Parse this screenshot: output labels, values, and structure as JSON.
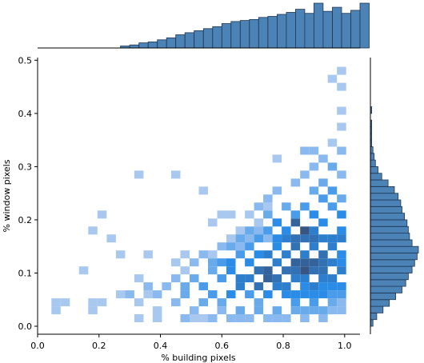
{
  "chart_data": {
    "type": "heatmap",
    "subtype": "joint-histogram-with-marginals",
    "xlabel": "% building pixels",
    "ylabel": "% window pixels",
    "xlim": [
      0.0,
      1.05
    ],
    "ylim": [
      -0.015,
      0.505
    ],
    "x_ticks": [
      "0.0",
      "0.2",
      "0.4",
      "0.6",
      "0.8",
      "1.0"
    ],
    "y_ticks": [
      "0.0",
      "0.1",
      "0.2",
      "0.3",
      "0.4",
      "0.5"
    ],
    "color": "#1f77b4",
    "bar_color": "#4c83b6",
    "grid": false,
    "bin_width_x": 0.03,
    "bin_height_y": 0.015,
    "cells": [
      [
        0.06,
        0.045,
        1
      ],
      [
        0.06,
        0.03,
        1
      ],
      [
        0.09,
        0.045,
        1
      ],
      [
        0.18,
        0.045,
        1
      ],
      [
        0.18,
        0.03,
        1
      ],
      [
        0.21,
        0.045,
        1
      ],
      [
        0.18,
        0.18,
        1
      ],
      [
        0.21,
        0.21,
        1
      ],
      [
        0.15,
        0.105,
        1
      ],
      [
        0.24,
        0.165,
        1
      ],
      [
        0.27,
        0.135,
        1
      ],
      [
        0.36,
        0.135,
        1
      ],
      [
        0.27,
        0.06,
        1
      ],
      [
        0.3,
        0.06,
        2
      ],
      [
        0.33,
        0.045,
        1
      ],
      [
        0.36,
        0.06,
        1
      ],
      [
        0.39,
        0.06,
        2
      ],
      [
        0.42,
        0.075,
        2
      ],
      [
        0.33,
        0.09,
        1
      ],
      [
        0.36,
        0.075,
        2
      ],
      [
        0.33,
        0.015,
        1
      ],
      [
        0.39,
        0.03,
        1
      ],
      [
        0.39,
        0.015,
        1
      ],
      [
        0.33,
        0.285,
        1
      ],
      [
        0.45,
        0.285,
        1
      ],
      [
        0.54,
        0.255,
        1
      ],
      [
        0.57,
        0.195,
        1
      ],
      [
        0.6,
        0.21,
        1
      ],
      [
        0.63,
        0.21,
        1
      ],
      [
        0.66,
        0.18,
        1
      ],
      [
        0.69,
        0.21,
        1
      ],
      [
        0.72,
        0.195,
        1
      ],
      [
        0.75,
        0.225,
        1
      ],
      [
        0.78,
        0.315,
        1
      ],
      [
        0.45,
        0.12,
        1
      ],
      [
        0.48,
        0.105,
        1
      ],
      [
        0.51,
        0.12,
        2
      ],
      [
        0.48,
        0.135,
        1
      ],
      [
        0.54,
        0.135,
        2
      ],
      [
        0.57,
        0.135,
        1
      ],
      [
        0.6,
        0.15,
        2
      ],
      [
        0.63,
        0.165,
        1
      ],
      [
        0.66,
        0.15,
        2
      ],
      [
        0.69,
        0.165,
        2
      ],
      [
        0.72,
        0.18,
        2
      ],
      [
        0.75,
        0.165,
        2
      ],
      [
        0.45,
        0.09,
        2
      ],
      [
        0.48,
        0.075,
        3
      ],
      [
        0.51,
        0.09,
        3
      ],
      [
        0.54,
        0.075,
        4
      ],
      [
        0.57,
        0.105,
        3
      ],
      [
        0.6,
        0.09,
        4
      ],
      [
        0.63,
        0.105,
        5
      ],
      [
        0.66,
        0.09,
        6
      ],
      [
        0.69,
        0.12,
        5
      ],
      [
        0.72,
        0.105,
        7
      ],
      [
        0.75,
        0.09,
        8
      ],
      [
        0.78,
        0.12,
        6
      ],
      [
        0.81,
        0.105,
        7
      ],
      [
        0.84,
        0.09,
        6
      ],
      [
        0.87,
        0.12,
        8
      ],
      [
        0.9,
        0.105,
        7
      ],
      [
        0.93,
        0.09,
        6
      ],
      [
        0.96,
        0.075,
        5
      ],
      [
        0.45,
        0.045,
        2
      ],
      [
        0.48,
        0.06,
        3
      ],
      [
        0.51,
        0.03,
        2
      ],
      [
        0.54,
        0.045,
        3
      ],
      [
        0.57,
        0.06,
        4
      ],
      [
        0.6,
        0.045,
        3
      ],
      [
        0.63,
        0.06,
        5
      ],
      [
        0.66,
        0.075,
        6
      ],
      [
        0.69,
        0.06,
        4
      ],
      [
        0.72,
        0.045,
        3
      ],
      [
        0.75,
        0.06,
        5
      ],
      [
        0.78,
        0.075,
        6
      ],
      [
        0.81,
        0.06,
        5
      ],
      [
        0.84,
        0.045,
        4
      ],
      [
        0.87,
        0.06,
        5
      ],
      [
        0.9,
        0.045,
        4
      ],
      [
        0.93,
        0.06,
        5
      ],
      [
        0.96,
        0.045,
        3
      ],
      [
        0.48,
        0.015,
        2
      ],
      [
        0.51,
        0.015,
        1
      ],
      [
        0.57,
        0.015,
        2
      ],
      [
        0.6,
        0.03,
        2
      ],
      [
        0.66,
        0.03,
        3
      ],
      [
        0.69,
        0.015,
        2
      ],
      [
        0.72,
        0.03,
        3
      ],
      [
        0.78,
        0.03,
        3
      ],
      [
        0.81,
        0.015,
        2
      ],
      [
        0.87,
        0.03,
        3
      ],
      [
        0.93,
        0.03,
        3
      ],
      [
        0.99,
        0.045,
        2
      ],
      [
        0.75,
        0.135,
        6
      ],
      [
        0.78,
        0.15,
        5
      ],
      [
        0.81,
        0.135,
        6
      ],
      [
        0.84,
        0.15,
        7
      ],
      [
        0.87,
        0.135,
        6
      ],
      [
        0.9,
        0.15,
        6
      ],
      [
        0.93,
        0.135,
        7
      ],
      [
        0.96,
        0.15,
        6
      ],
      [
        0.99,
        0.135,
        5
      ],
      [
        0.81,
        0.18,
        5
      ],
      [
        0.84,
        0.195,
        8
      ],
      [
        0.87,
        0.165,
        7
      ],
      [
        0.9,
        0.18,
        6
      ],
      [
        0.93,
        0.195,
        5
      ],
      [
        0.96,
        0.165,
        6
      ],
      [
        0.99,
        0.18,
        5
      ],
      [
        0.84,
        0.21,
        4
      ],
      [
        0.87,
        0.225,
        4
      ],
      [
        0.9,
        0.21,
        5
      ],
      [
        0.93,
        0.24,
        4
      ],
      [
        0.96,
        0.225,
        4
      ],
      [
        0.99,
        0.21,
        5
      ],
      [
        0.9,
        0.255,
        3
      ],
      [
        0.93,
        0.27,
        3
      ],
      [
        0.96,
        0.255,
        4
      ],
      [
        0.99,
        0.24,
        3
      ],
      [
        0.84,
        0.27,
        2
      ],
      [
        0.87,
        0.285,
        2
      ],
      [
        0.9,
        0.3,
        2
      ],
      [
        0.93,
        0.315,
        2
      ],
      [
        0.96,
        0.3,
        3
      ],
      [
        0.99,
        0.285,
        2
      ],
      [
        0.87,
        0.33,
        2
      ],
      [
        0.9,
        0.33,
        2
      ],
      [
        0.96,
        0.345,
        1
      ],
      [
        0.99,
        0.33,
        2
      ],
      [
        0.99,
        0.375,
        1
      ],
      [
        0.99,
        0.405,
        1
      ],
      [
        0.99,
        0.45,
        1
      ],
      [
        0.96,
        0.465,
        1
      ],
      [
        0.99,
        0.48,
        1
      ],
      [
        0.78,
        0.195,
        5
      ],
      [
        0.75,
        0.21,
        3
      ],
      [
        0.81,
        0.225,
        3
      ],
      [
        0.72,
        0.225,
        2
      ],
      [
        0.78,
        0.255,
        2
      ],
      [
        0.75,
        0.24,
        2
      ],
      [
        0.69,
        0.09,
        6
      ],
      [
        0.72,
        0.075,
        7
      ],
      [
        0.75,
        0.105,
        8
      ],
      [
        0.78,
        0.09,
        7
      ],
      [
        0.81,
        0.075,
        6
      ],
      [
        0.84,
        0.105,
        7
      ],
      [
        0.87,
        0.09,
        6
      ],
      [
        0.9,
        0.075,
        6
      ],
      [
        0.93,
        0.105,
        7
      ],
      [
        0.96,
        0.09,
        6
      ],
      [
        0.99,
        0.105,
        6
      ],
      [
        0.99,
        0.075,
        5
      ],
      [
        0.63,
        0.12,
        5
      ],
      [
        0.66,
        0.135,
        4
      ],
      [
        0.69,
        0.15,
        4
      ],
      [
        0.72,
        0.135,
        5
      ],
      [
        0.6,
        0.12,
        4
      ],
      [
        0.57,
        0.12,
        3
      ],
      [
        0.84,
        0.12,
        8
      ],
      [
        0.87,
        0.105,
        9
      ],
      [
        0.9,
        0.12,
        8
      ],
      [
        0.93,
        0.12,
        7
      ],
      [
        0.96,
        0.12,
        6
      ],
      [
        0.99,
        0.12,
        5
      ],
      [
        0.81,
        0.165,
        6
      ],
      [
        0.84,
        0.165,
        7
      ],
      [
        0.87,
        0.18,
        9
      ],
      [
        0.9,
        0.165,
        7
      ],
      [
        0.93,
        0.165,
        6
      ],
      [
        0.99,
        0.165,
        6
      ],
      [
        0.78,
        0.165,
        5
      ],
      [
        0.75,
        0.18,
        4
      ],
      [
        0.72,
        0.165,
        4
      ],
      [
        0.69,
        0.18,
        3
      ],
      [
        0.66,
        0.165,
        3
      ],
      [
        0.63,
        0.15,
        3
      ],
      [
        0.84,
        0.06,
        5
      ],
      [
        0.87,
        0.075,
        5
      ],
      [
        0.9,
        0.06,
        5
      ],
      [
        0.93,
        0.075,
        5
      ],
      [
        0.99,
        0.06,
        4
      ],
      [
        0.96,
        0.06,
        4
      ],
      [
        0.84,
        0.03,
        3
      ],
      [
        0.9,
        0.03,
        3
      ],
      [
        0.96,
        0.03,
        2
      ],
      [
        0.99,
        0.03,
        2
      ],
      [
        0.87,
        0.015,
        2
      ],
      [
        0.93,
        0.015,
        2
      ],
      [
        0.54,
        0.015,
        1
      ],
      [
        0.63,
        0.015,
        2
      ],
      [
        0.66,
        0.015,
        2
      ],
      [
        0.75,
        0.015,
        2
      ],
      [
        0.78,
        0.015,
        2
      ]
    ],
    "marginal_x": {
      "bin_edges_start": 0.27,
      "bin_width": 0.03,
      "values": [
        2,
        3,
        5,
        6,
        8,
        10,
        13,
        15,
        17,
        19,
        21,
        24,
        26,
        27,
        28,
        30,
        31,
        33,
        35,
        38,
        34,
        44,
        36,
        40,
        34,
        37,
        44
      ]
    },
    "marginal_y": {
      "bin_edges_start": 0.0,
      "bin_width": 0.0125,
      "values": [
        2,
        5,
        10,
        15,
        20,
        25,
        28,
        30,
        33,
        35,
        37,
        38,
        33,
        31,
        30,
        29,
        27,
        25,
        24,
        22,
        19,
        14,
        9,
        6,
        4,
        3,
        2,
        1,
        1,
        1,
        1,
        0,
        1,
        0,
        0,
        0,
        0,
        0,
        0,
        0
      ]
    }
  }
}
